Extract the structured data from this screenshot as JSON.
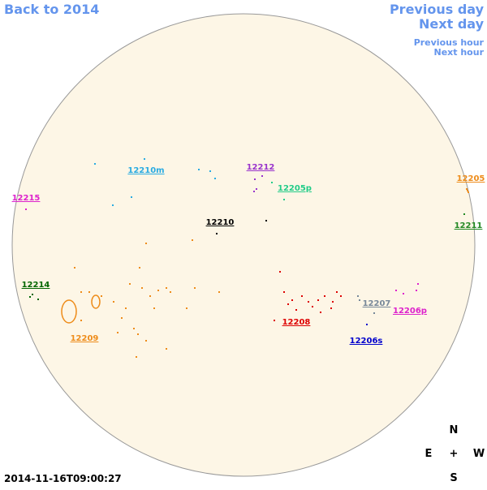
{
  "navigation": {
    "back": "Back to 2014",
    "previous_day": "Previous day",
    "next_day": "Next day",
    "previous_hour": "Previous hour",
    "next_hour": "Next hour",
    "color": "#6495ed"
  },
  "regions": [
    {
      "label": "12210m",
      "color": "#29abe2"
    },
    {
      "label": "12212",
      "color": "#9933cc"
    },
    {
      "label": "12205p",
      "color": "#22cc88"
    },
    {
      "label": "12205",
      "color": "#ee8c1a"
    },
    {
      "label": "12215",
      "color": "#dd22cc"
    },
    {
      "label": "12210",
      "color": "#000000"
    },
    {
      "label": "12211",
      "color": "#228822"
    },
    {
      "label": "12214",
      "color": "#006600"
    },
    {
      "label": "12209",
      "color": "#ee8c1a"
    },
    {
      "label": "12207",
      "color": "#778899"
    },
    {
      "label": "12206p",
      "color": "#dd22cc"
    },
    {
      "label": "12208",
      "color": "#dd0000"
    },
    {
      "label": "12206s",
      "color": "#0000cc"
    }
  ],
  "compass": {
    "north": "N",
    "east": "E",
    "center": "+",
    "west": "W",
    "south": "S"
  },
  "timestamp": "2014-11-16T09:00:27"
}
